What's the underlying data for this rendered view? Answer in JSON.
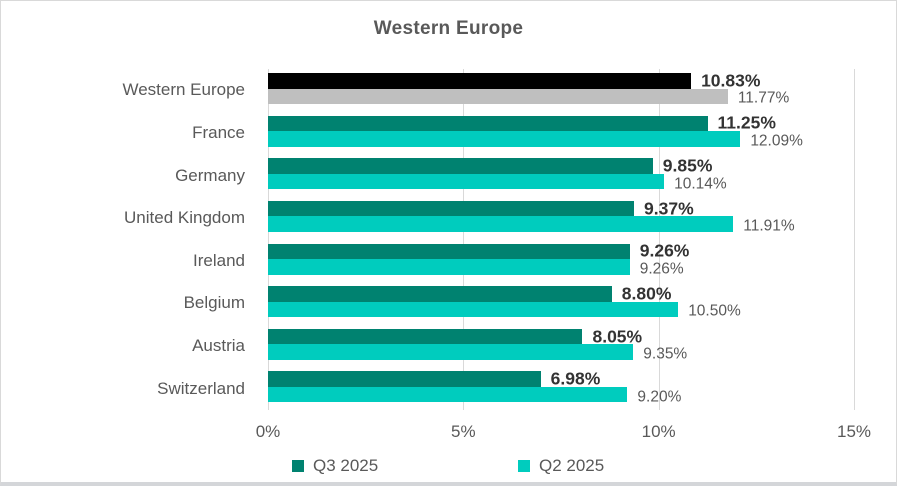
{
  "chart_data": {
    "type": "bar",
    "orientation": "horizontal",
    "title": "Western Europe",
    "categories": [
      "Western Europe",
      "France",
      "Germany",
      "United Kingdom",
      "Ireland",
      "Belgium",
      "Austria",
      "Switzerland"
    ],
    "series": [
      {
        "name": "Q3 2025",
        "color": "#008270",
        "values": [
          10.83,
          11.25,
          9.85,
          9.37,
          9.26,
          8.8,
          8.05,
          6.98
        ],
        "labels": [
          "10.83%",
          "11.25%",
          "9.85%",
          "9.37%",
          "9.26%",
          "8.80%",
          "8.05%",
          "6.98%"
        ]
      },
      {
        "name": "Q2 2025",
        "color": "#00ccbe",
        "values": [
          11.77,
          12.09,
          10.14,
          11.91,
          9.26,
          10.5,
          9.35,
          9.2
        ],
        "labels": [
          "11.77%",
          "12.09%",
          "10.14%",
          "11.91%",
          "9.26%",
          "10.50%",
          "9.35%",
          "9.20%"
        ]
      }
    ],
    "highlight": {
      "category": "Western Europe",
      "row": 0,
      "colors": [
        "#000000",
        "#bfbfbf"
      ]
    },
    "x_ticks": [
      "0%",
      "5%",
      "10%",
      "15%"
    ],
    "xlim": [
      0,
      15
    ],
    "grid": true,
    "legend_position": "bottom",
    "style": {
      "gridline_color": "#d9d9d9",
      "title_color": "#595959",
      "axis_text_color": "#595959",
      "q3_value_label_color": "#333333",
      "q2_value_label_color": "#595959"
    }
  }
}
